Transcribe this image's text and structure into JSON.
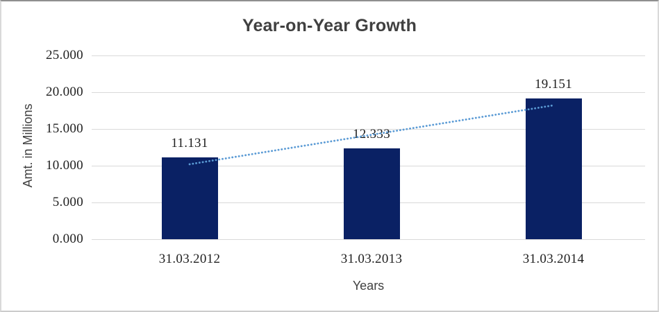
{
  "chart_data": {
    "type": "bar",
    "title": "Year-on-Year Growth",
    "xlabel": "Years",
    "ylabel": "Amt. in Millions",
    "categories": [
      "31.03.2012",
      "31.03.2013",
      "31.03.2014"
    ],
    "values": [
      11.131,
      12.333,
      19.151
    ],
    "data_labels": [
      "11.131",
      "12.333",
      "19.151"
    ],
    "ytick_values": [
      0,
      5,
      10,
      15,
      20,
      25
    ],
    "ytick_labels": [
      "0.000",
      "5.000",
      "10.000",
      "15.000",
      "20.000",
      "25.000"
    ],
    "ylim": [
      0,
      25
    ],
    "grid": "horizontal-major",
    "legend": "none",
    "trendline": {
      "type": "linear",
      "style": "dotted"
    },
    "colors": {
      "bar": "#0a2164",
      "trendline": "#5b9bd5",
      "gridline": "#d9d9d9",
      "numeric_text": "#1f1f1f",
      "title_text": "#404040",
      "axis_title_text": "#404040",
      "background": "#ffffff"
    }
  }
}
